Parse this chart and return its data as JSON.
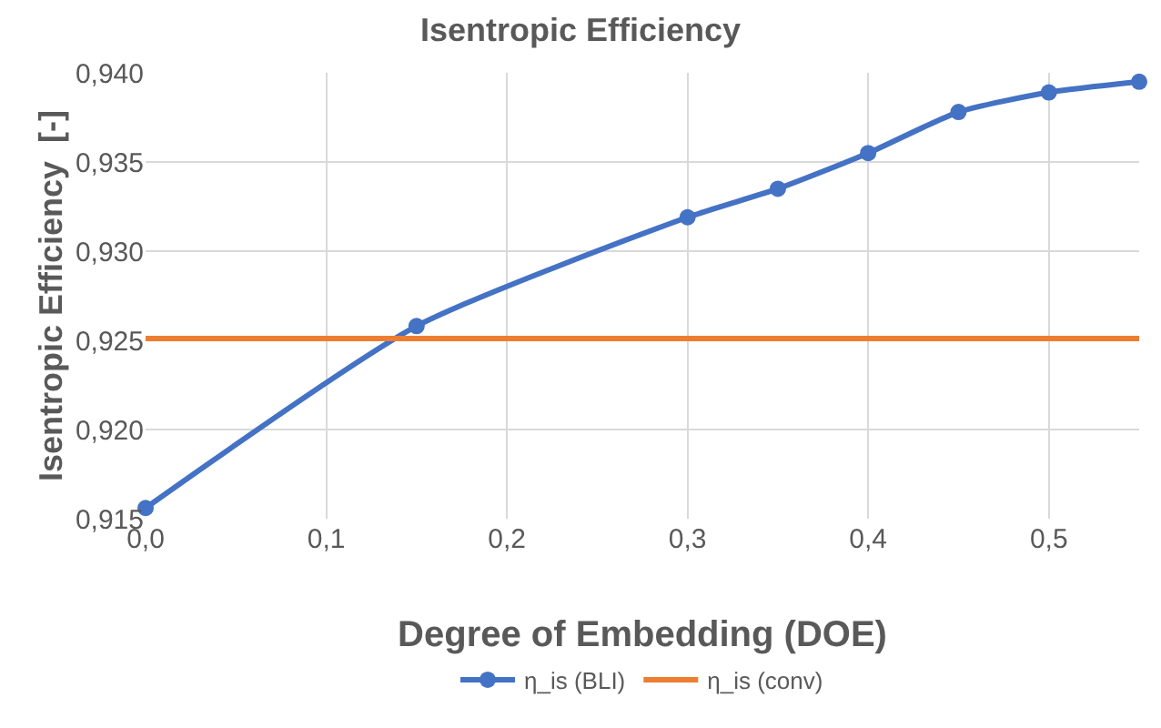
{
  "chart_data": {
    "type": "line",
    "title": "Isentropic Efficiency",
    "xlabel": "Degree of Embedding (DOE)",
    "ylabel": "Isentropic Efficiency  [-]",
    "series": [
      {
        "name": "η_is (BLI)",
        "color": "#4472c4",
        "marker": "circle",
        "x": [
          0,
          0.15,
          0.3,
          0.35,
          0.4,
          0.45,
          0.5,
          0.55
        ],
        "values": [
          0.9156,
          0.9258,
          0.9319,
          0.9335,
          0.9355,
          0.9378,
          0.9389,
          0.9395
        ]
      },
      {
        "name": "η_is (conv)",
        "color": "#ed7d31",
        "marker": "none",
        "x": [
          0,
          0.55
        ],
        "values": [
          0.9251,
          0.9251
        ]
      }
    ],
    "xlim": [
      0,
      0.55
    ],
    "ylim": [
      0.915,
      0.94
    ],
    "xticks": [
      {
        "value": 0,
        "label": "0,0"
      },
      {
        "value": 0.1,
        "label": "0,1"
      },
      {
        "value": 0.2,
        "label": "0,2"
      },
      {
        "value": 0.3,
        "label": "0,3"
      },
      {
        "value": 0.4,
        "label": "0,4"
      },
      {
        "value": 0.5,
        "label": "0,5"
      }
    ],
    "yticks": [
      {
        "value": 0.915,
        "label": "0,915"
      },
      {
        "value": 0.92,
        "label": "0,920"
      },
      {
        "value": 0.925,
        "label": "0,925"
      },
      {
        "value": 0.93,
        "label": "0,930"
      },
      {
        "value": 0.935,
        "label": "0,935"
      },
      {
        "value": 0.94,
        "label": "0,940"
      }
    ],
    "grid": true,
    "legend": "bottom",
    "line_style": "solid"
  }
}
